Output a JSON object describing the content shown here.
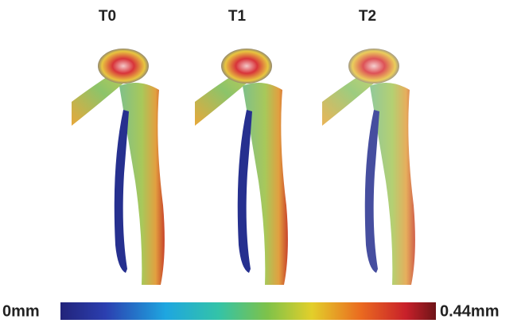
{
  "panels": [
    {
      "label": "T0"
    },
    {
      "label": "T1"
    },
    {
      "label": "T2"
    }
  ],
  "colorbar": {
    "min_label": "0mm",
    "max_label": "0.44mm"
  }
}
